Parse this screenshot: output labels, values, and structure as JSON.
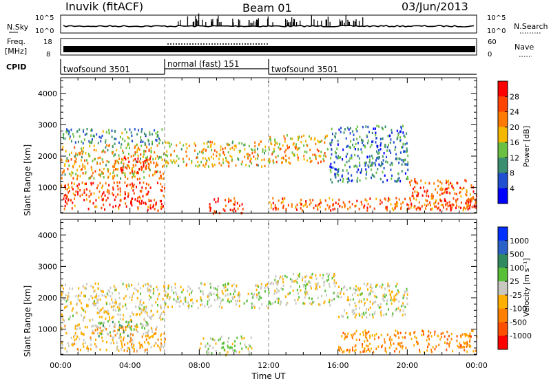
{
  "header": {
    "station": "Inuvik (fitACF)",
    "beam": "Beam 01",
    "date": "03/Jun/2013"
  },
  "strip": {
    "nsky_label": "N.Sky",
    "nsky_ticks": [
      "10^5",
      "10^0"
    ],
    "nsearch_label": "N.Search",
    "nsearch_ticks": [
      "10^5",
      "10^0"
    ],
    "freq_label_1": "Freq.",
    "freq_label_2": "[MHz]",
    "freq_ticks": [
      "18",
      "8"
    ],
    "nave_label": "Nave",
    "nave_ticks": [
      "60",
      "0"
    ],
    "cpid_label": "CPID"
  },
  "cpid_segments": [
    {
      "label": "twofsound 3501",
      "start_hour": 0,
      "end_hour": 6
    },
    {
      "label": "normal (fast) 151",
      "start_hour": 6,
      "end_hour": 12
    },
    {
      "label": "twofsound 3501",
      "start_hour": 12,
      "end_hour": 24
    }
  ],
  "axes": {
    "x_ticks": [
      "00:00",
      "04:00",
      "08:00",
      "12:00",
      "16:00",
      "20:00",
      "00:00"
    ],
    "x_label": "Time UT",
    "y_label": "Slant Range [km]",
    "y_ticks": [
      "1000",
      "2000",
      "3000",
      "4000"
    ],
    "y_tick_values": [
      1000,
      2000,
      3000,
      4000
    ],
    "y_range_km": [
      180,
      4500
    ],
    "x_range_hours": [
      0,
      24
    ]
  },
  "power_colorbar": {
    "label": "Power [dB]",
    "ticks": [
      "28",
      "24",
      "20",
      "16",
      "12",
      "8",
      "4"
    ],
    "colors": [
      "#0000ff",
      "#2050d0",
      "#3a8f70",
      "#6ac040",
      "#f5b800",
      "#ff7a00",
      "#ff4400",
      "#ff0000"
    ]
  },
  "velocity_colorbar": {
    "label": "Velocity [m s⁻¹]",
    "ticks": [
      "1000",
      "500",
      "100",
      "25",
      "-25",
      "-100",
      "-500",
      "-1000"
    ],
    "colors": [
      "#0030ff",
      "#2a62c8",
      "#308a60",
      "#58c038",
      "#c8c8c0",
      "#ffb000",
      "#ff8000",
      "#ff5000",
      "#ff0000"
    ]
  },
  "chart_data": [
    {
      "type": "heatmap",
      "title": "Power",
      "xlabel": "Time UT",
      "ylabel": "Slant Range [km]",
      "xlim": [
        0,
        24
      ],
      "ylim": [
        180,
        4500
      ],
      "colorbar_label": "Power [dB]",
      "colorbar_range": [
        0,
        32
      ],
      "bands": [
        {
          "t0": 0.0,
          "t1": 6.0,
          "r0": 300,
          "r1": 1200,
          "value": 26
        },
        {
          "t0": 0.0,
          "t1": 6.0,
          "r0": 1300,
          "r1": 2400,
          "value": 18
        },
        {
          "t0": 0.0,
          "t1": 6.0,
          "r0": 2400,
          "r1": 2900,
          "value": 10
        },
        {
          "t0": 3.0,
          "t1": 6.0,
          "r0": 1500,
          "r1": 2000,
          "value": 27
        },
        {
          "t0": 6.0,
          "t1": 12.0,
          "r0": 1700,
          "r1": 2500,
          "value": 18
        },
        {
          "t0": 8.5,
          "t1": 10.5,
          "r0": 200,
          "r1": 700,
          "value": 28
        },
        {
          "t0": 12.0,
          "t1": 15.5,
          "r0": 1800,
          "r1": 2700,
          "value": 19
        },
        {
          "t0": 15.5,
          "t1": 20.0,
          "r0": 1200,
          "r1": 3000,
          "value": 9
        },
        {
          "t0": 12.0,
          "t1": 24.0,
          "r0": 300,
          "r1": 700,
          "value": 24
        },
        {
          "t0": 20.0,
          "t1": 24.0,
          "r0": 300,
          "r1": 1300,
          "value": 25
        }
      ]
    },
    {
      "type": "heatmap",
      "title": "Velocity",
      "xlabel": "Time UT",
      "ylabel": "Slant Range [km]",
      "xlim": [
        0,
        24
      ],
      "ylim": [
        180,
        4500
      ],
      "colorbar_label": "Velocity [m s⁻¹]",
      "colorbar_range": [
        -1000,
        1000
      ],
      "bands": [
        {
          "t0": 0.0,
          "t1": 6.0,
          "r0": 300,
          "r1": 1200,
          "value": -200
        },
        {
          "t0": 0.0,
          "t1": 6.0,
          "r0": 1300,
          "r1": 2500,
          "value": -80
        },
        {
          "t0": 2.0,
          "t1": 5.0,
          "r0": 800,
          "r1": 1300,
          "value": 150
        },
        {
          "t0": 6.0,
          "t1": 12.0,
          "r0": 1700,
          "r1": 2500,
          "value": 0
        },
        {
          "t0": 8.0,
          "t1": 11.0,
          "r0": 200,
          "r1": 800,
          "value": 10
        },
        {
          "t0": 12.0,
          "t1": 16.0,
          "r0": 1800,
          "r1": 2800,
          "value": 5
        },
        {
          "t0": 16.0,
          "t1": 20.0,
          "r0": 1400,
          "r1": 2500,
          "value": -30
        },
        {
          "t0": 16.0,
          "t1": 24.0,
          "r0": 300,
          "r1": 1000,
          "value": -400
        }
      ]
    }
  ]
}
